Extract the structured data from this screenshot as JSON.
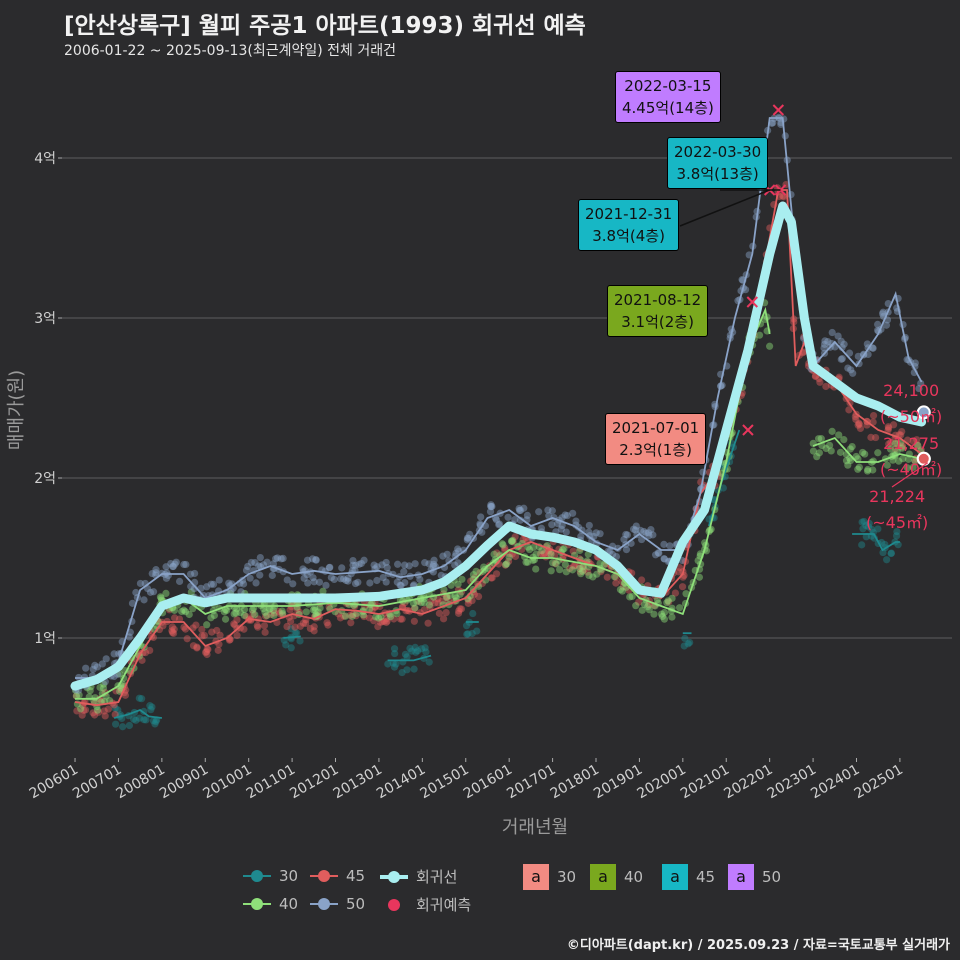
{
  "header": {
    "title": "[안산상록구] 월피 주공1 아파트(1993) 회귀선 예측",
    "subtitle": "2006-01-22 ~ 2025-09-13(최근계약일) 전체 거래건"
  },
  "footer": {
    "credit": "©디아파트(dapt.kr) / 2025.09.23 / 자료=국토교통부 실거래가"
  },
  "chart_data": {
    "type": "line",
    "xlabel": "거래년월",
    "ylabel": "매매가(원)",
    "x_range": [
      2005.7,
      2026.2
    ],
    "ylim": [
      0.25,
      4.6
    ],
    "y_ticks": [
      {
        "v": 1,
        "label": "1억"
      },
      {
        "v": 2,
        "label": "2억"
      },
      {
        "v": 3,
        "label": "3억"
      },
      {
        "v": 4,
        "label": "4억"
      }
    ],
    "x_ticks": [
      {
        "v": 2006,
        "label": "200601"
      },
      {
        "v": 2007,
        "label": "200701"
      },
      {
        "v": 2008,
        "label": "200801"
      },
      {
        "v": 2009,
        "label": "200901"
      },
      {
        "v": 2010,
        "label": "201001"
      },
      {
        "v": 2011,
        "label": "201101"
      },
      {
        "v": 2012,
        "label": "201201"
      },
      {
        "v": 2013,
        "label": "201301"
      },
      {
        "v": 2014,
        "label": "201401"
      },
      {
        "v": 2015,
        "label": "201501"
      },
      {
        "v": 2016,
        "label": "201601"
      },
      {
        "v": 2017,
        "label": "201701"
      },
      {
        "v": 2018,
        "label": "201801"
      },
      {
        "v": 2019,
        "label": "201901"
      },
      {
        "v": 2020,
        "label": "202001"
      },
      {
        "v": 2021,
        "label": "202101"
      },
      {
        "v": 2022,
        "label": "202201"
      },
      {
        "v": 2023,
        "label": "202301"
      },
      {
        "v": 2024,
        "label": "202401"
      },
      {
        "v": 2025,
        "label": "202501"
      }
    ],
    "series": [
      {
        "name": "30",
        "color": "#1f8a8f",
        "segments": [
          [
            [
              2006.9,
              0.5
            ],
            [
              2007.2,
              0.52
            ],
            [
              2007.5,
              0.55
            ],
            [
              2007.7,
              0.51
            ],
            [
              2008.0,
              0.5
            ]
          ],
          [
            [
              2010.8,
              1.0
            ],
            [
              2011.2,
              1.01
            ]
          ],
          [
            [
              2013.2,
              0.86
            ],
            [
              2013.8,
              0.86
            ],
            [
              2014.2,
              0.89
            ]
          ],
          [
            [
              2015.0,
              1.1
            ],
            [
              2015.3,
              1.1
            ]
          ],
          [
            [
              2020.0,
              1.03
            ],
            [
              2020.2,
              1.03
            ]
          ],
          [
            [
              2020.6,
              1.7
            ],
            [
              2020.9,
              1.98
            ],
            [
              2021.3,
              2.3
            ]
          ],
          [
            [
              2023.9,
              1.65
            ],
            [
              2024.4,
              1.65
            ],
            [
              2024.6,
              1.55
            ],
            [
              2024.9,
              1.6
            ],
            [
              2025.0,
              1.6
            ]
          ]
        ]
      },
      {
        "name": "45",
        "color": "#e05d5d",
        "segments": [
          [
            [
              2006.0,
              0.6
            ],
            [
              2006.5,
              0.58
            ],
            [
              2007.0,
              0.6
            ],
            [
              2007.5,
              0.9
            ],
            [
              2008.0,
              1.1
            ],
            [
              2008.5,
              1.1
            ],
            [
              2009.0,
              0.95
            ],
            [
              2009.5,
              1.0
            ],
            [
              2010.0,
              1.12
            ],
            [
              2010.5,
              1.1
            ],
            [
              2011.0,
              1.15
            ],
            [
              2011.5,
              1.12
            ],
            [
              2012.0,
              1.18
            ],
            [
              2012.5,
              1.17
            ],
            [
              2013.0,
              1.15
            ],
            [
              2013.5,
              1.18
            ],
            [
              2014.0,
              1.15
            ],
            [
              2014.5,
              1.2
            ],
            [
              2015.0,
              1.25
            ],
            [
              2015.5,
              1.4
            ],
            [
              2016.0,
              1.55
            ],
            [
              2016.5,
              1.6
            ],
            [
              2017.0,
              1.55
            ],
            [
              2017.5,
              1.5
            ],
            [
              2018.0,
              1.45
            ],
            [
              2018.5,
              1.4
            ],
            [
              2019.0,
              1.3
            ],
            [
              2019.5,
              1.25
            ],
            [
              2020.0,
              1.4
            ],
            [
              2020.4,
              1.9
            ],
            [
              2020.8,
              2.05
            ],
            [
              2021.2,
              2.4
            ],
            [
              2021.6,
              2.9
            ],
            [
              2022.0,
              3.5
            ],
            [
              2022.2,
              3.8
            ],
            [
              2022.4,
              3.8
            ],
            [
              2022.6,
              2.7
            ],
            [
              2022.8,
              2.85
            ],
            [
              2023.0,
              2.7
            ],
            [
              2023.5,
              2.6
            ],
            [
              2024.0,
              2.4
            ],
            [
              2024.5,
              2.3
            ],
            [
              2025.0,
              2.25
            ],
            [
              2025.5,
              2.15
            ]
          ]
        ]
      },
      {
        "name": "40",
        "color": "#8fe07a",
        "segments": [
          [
            [
              2006.0,
              0.62
            ],
            [
              2006.5,
              0.62
            ],
            [
              2007.0,
              0.7
            ],
            [
              2007.5,
              0.95
            ],
            [
              2008.0,
              1.2
            ],
            [
              2008.5,
              1.25
            ],
            [
              2009.0,
              1.15
            ],
            [
              2009.5,
              1.2
            ],
            [
              2010.0,
              1.2
            ],
            [
              2011.0,
              1.2
            ],
            [
              2012.0,
              1.22
            ],
            [
              2013.0,
              1.2
            ],
            [
              2014.0,
              1.25
            ],
            [
              2015.0,
              1.3
            ],
            [
              2015.5,
              1.45
            ],
            [
              2016.0,
              1.55
            ],
            [
              2016.5,
              1.5
            ],
            [
              2017.0,
              1.5
            ],
            [
              2018.0,
              1.45
            ],
            [
              2018.5,
              1.4
            ],
            [
              2019.0,
              1.25
            ],
            [
              2019.5,
              1.2
            ],
            [
              2020.0,
              1.15
            ],
            [
              2020.5,
              1.55
            ],
            [
              2021.0,
              2.1
            ],
            [
              2021.5,
              2.8
            ],
            [
              2021.9,
              3.05
            ],
            [
              2022.0,
              2.9
            ]
          ],
          [
            [
              2023.0,
              2.2
            ],
            [
              2023.5,
              2.25
            ],
            [
              2024.0,
              2.1
            ],
            [
              2024.5,
              2.1
            ],
            [
              2025.0,
              2.15
            ],
            [
              2025.5,
              2.12
            ]
          ]
        ]
      },
      {
        "name": "50",
        "color": "#8aa3c8",
        "segments": [
          [
            [
              2006.0,
              0.75
            ],
            [
              2006.5,
              0.75
            ],
            [
              2007.0,
              0.85
            ],
            [
              2007.5,
              1.3
            ],
            [
              2008.0,
              1.4
            ],
            [
              2008.5,
              1.4
            ],
            [
              2009.0,
              1.25
            ],
            [
              2009.5,
              1.3
            ],
            [
              2010.0,
              1.4
            ],
            [
              2010.5,
              1.45
            ],
            [
              2011.0,
              1.4
            ],
            [
              2011.5,
              1.42
            ],
            [
              2012.0,
              1.4
            ],
            [
              2013.0,
              1.42
            ],
            [
              2013.5,
              1.38
            ],
            [
              2014.0,
              1.4
            ],
            [
              2014.5,
              1.45
            ],
            [
              2015.0,
              1.55
            ],
            [
              2015.5,
              1.75
            ],
            [
              2016.0,
              1.8
            ],
            [
              2016.5,
              1.7
            ],
            [
              2017.0,
              1.75
            ],
            [
              2017.5,
              1.7
            ],
            [
              2018.0,
              1.6
            ],
            [
              2018.5,
              1.55
            ],
            [
              2019.0,
              1.65
            ],
            [
              2019.5,
              1.55
            ],
            [
              2020.0,
              1.55
            ],
            [
              2020.4,
              1.9
            ],
            [
              2020.8,
              2.5
            ],
            [
              2021.2,
              3.0
            ],
            [
              2021.6,
              3.4
            ],
            [
              2022.0,
              4.25
            ],
            [
              2022.3,
              4.25
            ],
            [
              2022.6,
              3.4
            ],
            [
              2022.8,
              2.9
            ],
            [
              2023.0,
              2.7
            ],
            [
              2023.5,
              2.85
            ],
            [
              2024.0,
              2.7
            ],
            [
              2024.5,
              2.9
            ],
            [
              2024.9,
              3.15
            ],
            [
              2025.2,
              2.75
            ],
            [
              2025.5,
              2.6
            ]
          ]
        ]
      }
    ],
    "regression": {
      "name": "회귀선",
      "color": "#a9eef0",
      "points": [
        [
          2006.0,
          0.7
        ],
        [
          2006.5,
          0.74
        ],
        [
          2007.0,
          0.82
        ],
        [
          2007.5,
          1.0
        ],
        [
          2008.0,
          1.2
        ],
        [
          2008.5,
          1.25
        ],
        [
          2009.0,
          1.22
        ],
        [
          2009.5,
          1.25
        ],
        [
          2010.0,
          1.25
        ],
        [
          2011.0,
          1.25
        ],
        [
          2012.0,
          1.25
        ],
        [
          2013.0,
          1.26
        ],
        [
          2014.0,
          1.3
        ],
        [
          2014.5,
          1.35
        ],
        [
          2015.0,
          1.45
        ],
        [
          2015.5,
          1.58
        ],
        [
          2016.0,
          1.7
        ],
        [
          2016.5,
          1.65
        ],
        [
          2017.0,
          1.63
        ],
        [
          2017.5,
          1.6
        ],
        [
          2018.0,
          1.55
        ],
        [
          2018.5,
          1.45
        ],
        [
          2019.0,
          1.3
        ],
        [
          2019.5,
          1.28
        ],
        [
          2020.0,
          1.6
        ],
        [
          2020.5,
          1.8
        ],
        [
          2021.0,
          2.3
        ],
        [
          2021.5,
          2.8
        ],
        [
          2022.0,
          3.4
        ],
        [
          2022.3,
          3.7
        ],
        [
          2022.5,
          3.6
        ],
        [
          2022.8,
          3.0
        ],
        [
          2023.0,
          2.7
        ],
        [
          2023.5,
          2.6
        ],
        [
          2024.0,
          2.5
        ],
        [
          2024.5,
          2.45
        ],
        [
          2025.0,
          2.38
        ],
        [
          2025.5,
          2.35
        ]
      ]
    },
    "annotations": [
      {
        "date": "2022-03-15",
        "text": "4.45억(14층)",
        "area": "50",
        "x": 2022.2,
        "y": 4.3
      },
      {
        "date": "2022-03-30",
        "text": "3.8억(13층)",
        "area": "45",
        "x": 2022.25,
        "y": 3.8
      },
      {
        "date": "2021-12-31",
        "text": "3.8억(4층)",
        "area": "45",
        "x": 2022.0,
        "y": 3.8
      },
      {
        "date": "2021-08-12",
        "text": "3.1억(2층)",
        "area": "40",
        "x": 2021.6,
        "y": 3.1
      },
      {
        "date": "2021-07-01",
        "text": "2.3억(1층)",
        "area": "30",
        "x": 2021.5,
        "y": 2.3
      }
    ],
    "end_predictions": [
      {
        "value": "24,100",
        "area": "(~50㎡)",
        "y": 2.41
      },
      {
        "value": "21,275",
        "area": "(~40㎡)",
        "y": 2.12
      },
      {
        "value": "21,224",
        "area": "(~45㎡)",
        "y": 2.12
      }
    ],
    "legend": {
      "lines": [
        {
          "label": "30",
          "color": "#1f8a8f"
        },
        {
          "label": "45",
          "color": "#e05d5d"
        },
        {
          "label": "회귀선",
          "color": "#a9eef0"
        },
        {
          "label": "40",
          "color": "#8fe07a"
        },
        {
          "label": "50",
          "color": "#8aa3c8"
        },
        {
          "label": "회귀예측",
          "color": "#e8365d"
        }
      ],
      "boxes": [
        {
          "glyph": "a",
          "label": "30",
          "color": "#f28b82"
        },
        {
          "glyph": "a",
          "label": "40",
          "color": "#7aa81e"
        },
        {
          "glyph": "a",
          "label": "45",
          "color": "#17b7c5"
        },
        {
          "glyph": "a",
          "label": "50",
          "color": "#c07cff"
        }
      ]
    }
  }
}
